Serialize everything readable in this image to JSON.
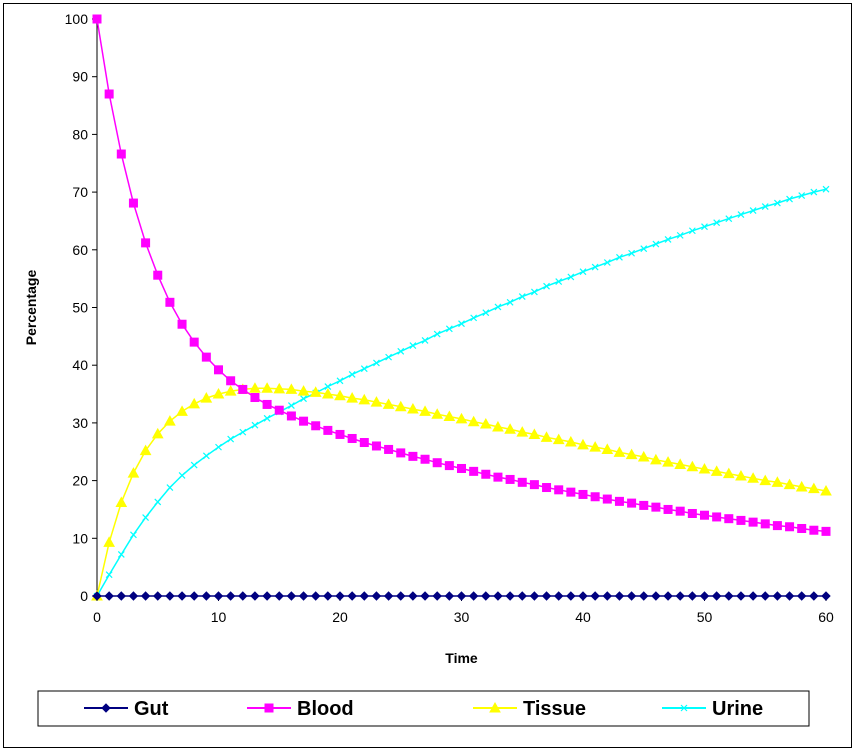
{
  "chart_data": {
    "type": "line",
    "title": "",
    "xlabel": "Time",
    "ylabel": "Percentage",
    "xlim": [
      0,
      60
    ],
    "ylim": [
      0,
      100
    ],
    "x_ticks": [
      0,
      10,
      20,
      30,
      40,
      50,
      60
    ],
    "y_ticks": [
      0,
      10,
      20,
      30,
      40,
      50,
      60,
      70,
      80,
      90,
      100
    ],
    "grid": false,
    "legend_position": "bottom",
    "x": [
      0,
      1,
      2,
      3,
      4,
      5,
      6,
      7,
      8,
      9,
      10,
      11,
      12,
      13,
      14,
      15,
      16,
      17,
      18,
      19,
      20,
      21,
      22,
      23,
      24,
      25,
      26,
      27,
      28,
      29,
      30,
      31,
      32,
      33,
      34,
      35,
      36,
      37,
      38,
      39,
      40,
      41,
      42,
      43,
      44,
      45,
      46,
      47,
      48,
      49,
      50,
      51,
      52,
      53,
      54,
      55,
      56,
      57,
      58,
      59,
      60
    ],
    "series": [
      {
        "name": "Gut",
        "color": "#000080",
        "marker": "diamond",
        "values": [
          0,
          0,
          0,
          0,
          0,
          0,
          0,
          0,
          0,
          0,
          0,
          0,
          0,
          0,
          0,
          0,
          0,
          0,
          0,
          0,
          0,
          0,
          0,
          0,
          0,
          0,
          0,
          0,
          0,
          0,
          0,
          0,
          0,
          0,
          0,
          0,
          0,
          0,
          0,
          0,
          0,
          0,
          0,
          0,
          0,
          0,
          0,
          0,
          0,
          0,
          0,
          0,
          0,
          0,
          0,
          0,
          0,
          0,
          0,
          0,
          0
        ]
      },
      {
        "name": "Blood",
        "color": "#FF00FF",
        "marker": "square",
        "values": [
          100,
          87,
          76.6,
          68.1,
          61.2,
          55.6,
          50.9,
          47.1,
          44,
          41.4,
          39.2,
          37.3,
          35.8,
          34.4,
          33.2,
          32.2,
          31.2,
          30.3,
          29.5,
          28.7,
          28,
          27.3,
          26.6,
          26,
          25.4,
          24.8,
          24.2,
          23.7,
          23.1,
          22.6,
          22.1,
          21.6,
          21.1,
          20.6,
          20.2,
          19.7,
          19.3,
          18.8,
          18.4,
          18,
          17.6,
          17.2,
          16.8,
          16.4,
          16.1,
          15.7,
          15.4,
          15,
          14.7,
          14.3,
          14,
          13.7,
          13.4,
          13.1,
          12.8,
          12.5,
          12.2,
          12,
          11.7,
          11.4,
          11.2
        ]
      },
      {
        "name": "Tissue",
        "color": "#FFFF00",
        "marker": "triangle",
        "values": [
          0,
          9.3,
          16.2,
          21.3,
          25.2,
          28.1,
          30.3,
          32,
          33.3,
          34.3,
          35,
          35.5,
          35.8,
          36,
          36,
          35.9,
          35.8,
          35.5,
          35.3,
          35,
          34.7,
          34.3,
          34,
          33.6,
          33.2,
          32.8,
          32.4,
          32,
          31.5,
          31.1,
          30.7,
          30.2,
          29.8,
          29.3,
          28.9,
          28.4,
          28,
          27.5,
          27.1,
          26.7,
          26.2,
          25.8,
          25.4,
          24.9,
          24.5,
          24.1,
          23.6,
          23.2,
          22.8,
          22.4,
          22,
          21.6,
          21.2,
          20.8,
          20.4,
          20,
          19.7,
          19.3,
          18.9,
          18.6,
          18.2
        ]
      },
      {
        "name": "Urine",
        "color": "#00FFFF",
        "marker": "x",
        "values": [
          0,
          3.7,
          7.2,
          10.6,
          13.6,
          16.3,
          18.8,
          20.9,
          22.7,
          24.3,
          25.8,
          27.2,
          28.4,
          29.6,
          30.8,
          31.9,
          33,
          34.2,
          35.2,
          36.3,
          37.3,
          38.4,
          39.4,
          40.4,
          41.4,
          42.4,
          43.4,
          44.3,
          45.4,
          46.3,
          47.2,
          48.2,
          49.1,
          50.1,
          50.9,
          51.9,
          52.7,
          53.7,
          54.5,
          55.3,
          56.2,
          57,
          57.8,
          58.7,
          59.4,
          60.2,
          61,
          61.8,
          62.5,
          63.3,
          64,
          64.7,
          65.4,
          66.1,
          66.8,
          67.5,
          68.1,
          68.8,
          69.4,
          70,
          70.5
        ]
      }
    ]
  }
}
